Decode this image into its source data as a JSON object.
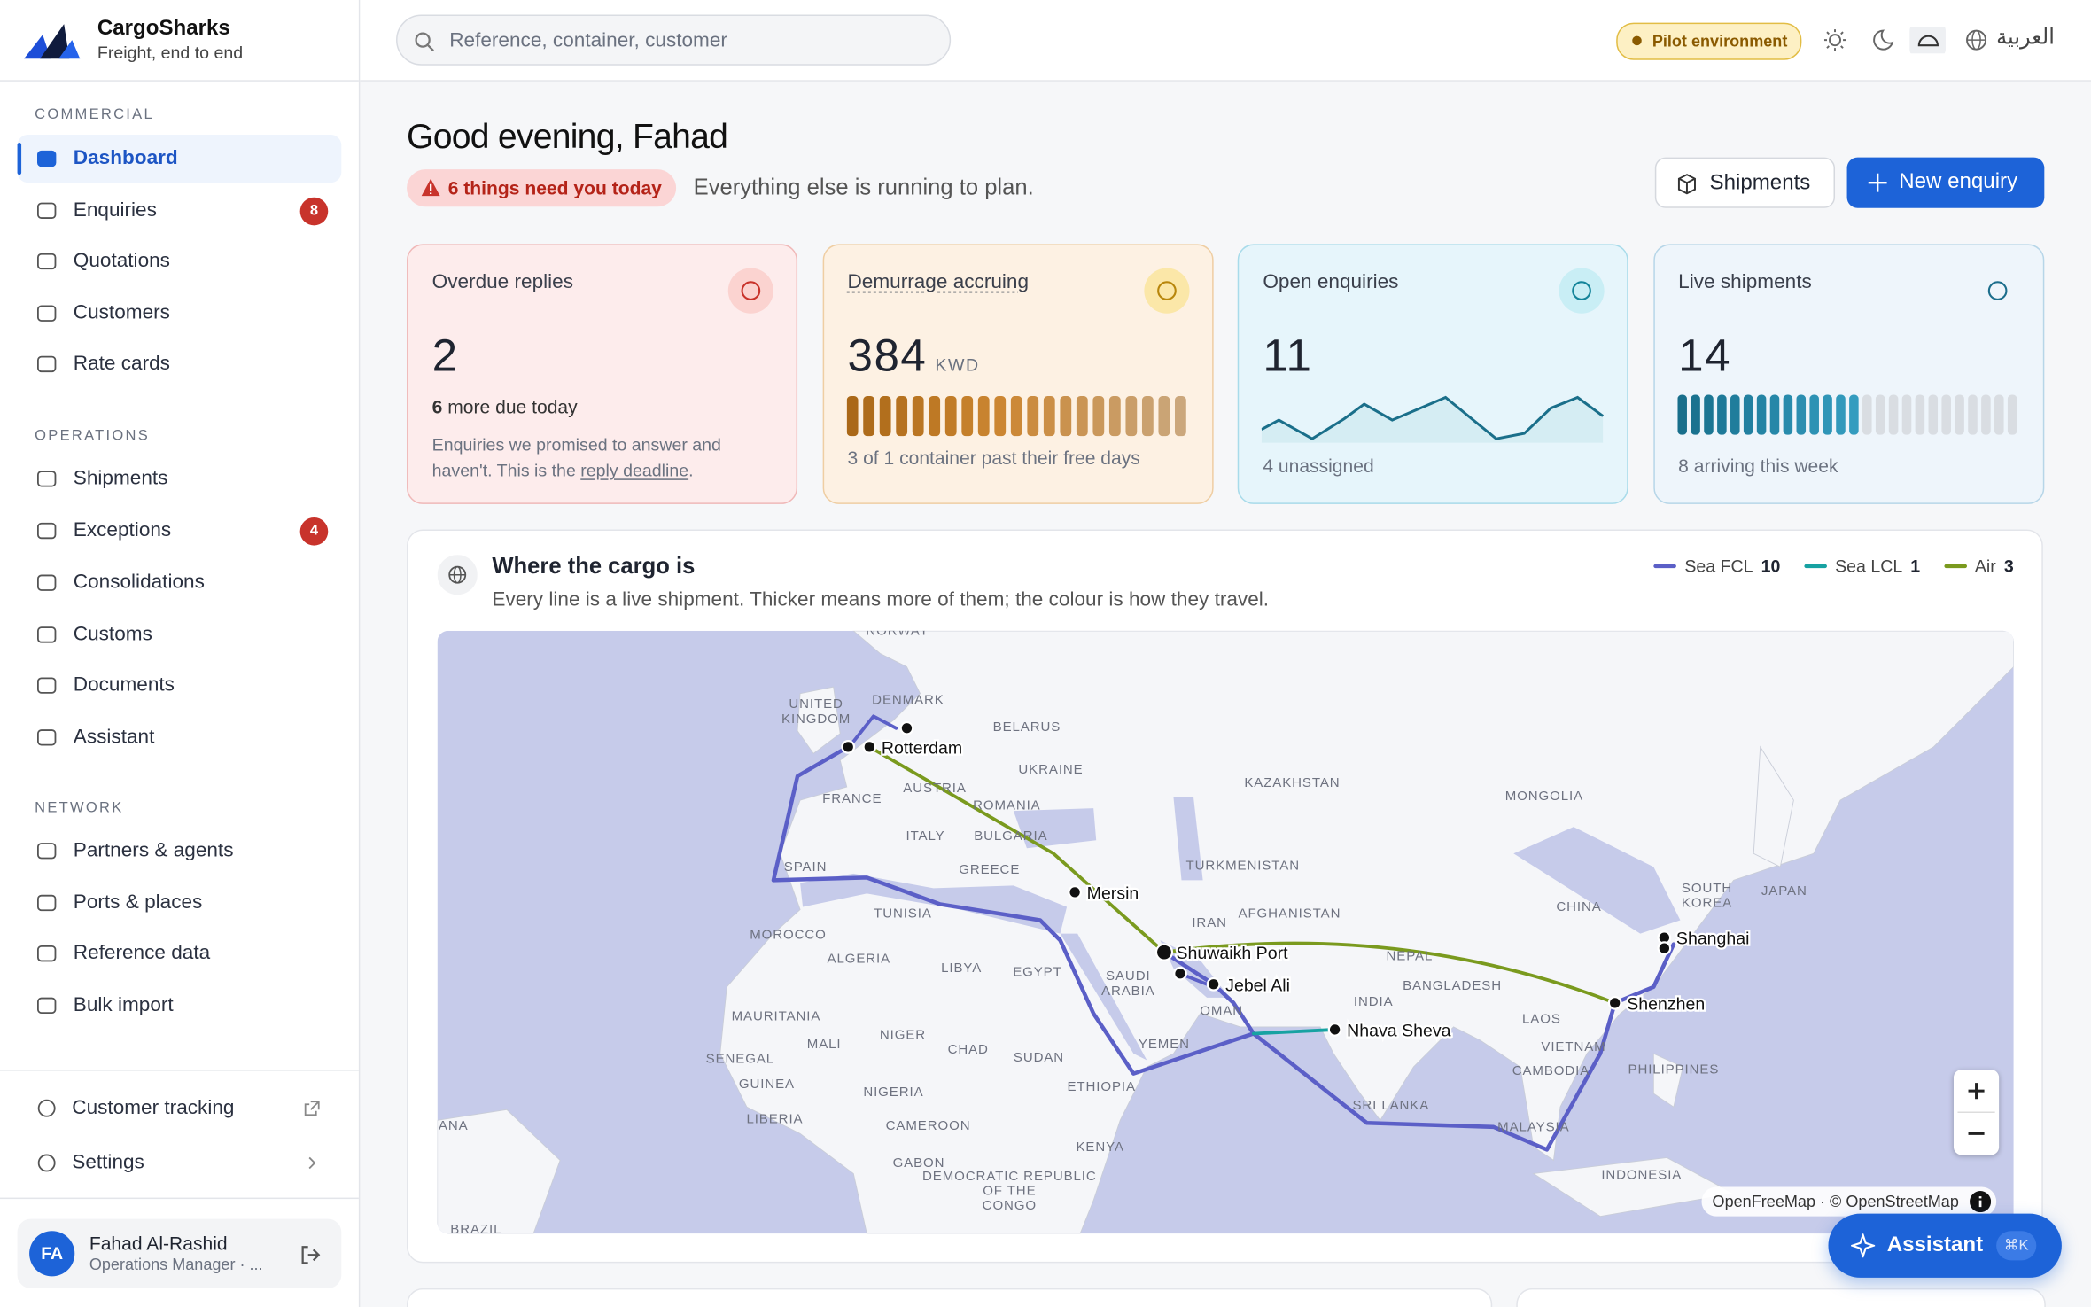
{
  "brand": {
    "name": "CargoSharks",
    "tagline": "Freight, end to end"
  },
  "search": {
    "placeholder": "Reference, container, customer"
  },
  "topbar": {
    "environment": "Pilot environment",
    "language": "العربية"
  },
  "nav": [
    {
      "title": "COMMERCIAL",
      "items": [
        {
          "label": "Dashboard"
        },
        {
          "label": "Enquiries",
          "badge": 8
        },
        {
          "label": "Quotations"
        },
        {
          "label": "Customers"
        },
        {
          "label": "Rate cards"
        }
      ]
    },
    {
      "title": "OPERATIONS",
      "items": [
        {
          "label": "Shipments"
        },
        {
          "label": "Exceptions",
          "badge": 4
        },
        {
          "label": "Consolidations"
        },
        {
          "label": "Customs"
        },
        {
          "label": "Documents"
        },
        {
          "label": "Assistant"
        }
      ]
    },
    {
      "title": "NETWORK",
      "items": [
        {
          "label": "Partners & agents"
        },
        {
          "label": "Ports & places"
        },
        {
          "label": "Reference data"
        },
        {
          "label": "Bulk import"
        }
      ]
    }
  ],
  "nav_footer": [
    {
      "label": "Customer tracking"
    },
    {
      "label": "Settings"
    }
  ],
  "user": {
    "initials": "FA",
    "name": "Fahad Al-Rashid",
    "role": "Operations Manager · ..."
  },
  "greeting": {
    "title": "Good evening, Fahad",
    "alert": "6 things need you today",
    "subline": "Everything else is running to plan."
  },
  "actions": [
    {
      "label": "Shipments"
    },
    {
      "label": "New enquiry"
    }
  ],
  "cards": [
    {
      "title": "Overdue replies",
      "value": 2,
      "note_strong": 6,
      "note": " more due today",
      "desc": "Enquiries we promised to answer and haven't. This is the ",
      "link": "reply deadline",
      "desc_end": "."
    },
    {
      "title": "Demurrage accruing",
      "value": 384,
      "unit": "KWD",
      "note": "3 of 1 container past their free days"
    },
    {
      "title": "Open enquiries",
      "value": 11,
      "note": "4 unassigned"
    },
    {
      "title": "Live shipments",
      "value": 14,
      "note": "8 arriving this week"
    }
  ],
  "map": {
    "title": "Where the cargo is",
    "subtitle": "Every line is a live shipment. Thicker means more of them; the colour is how they travel.",
    "legend": [
      {
        "name": "Sea FCL",
        "count": 10,
        "color": "#5b5fc7"
      },
      {
        "name": "Sea LCL",
        "count": 1,
        "color": "#17a2a2"
      },
      {
        "name": "Air",
        "count": 3,
        "color": "#7a9a1e"
      }
    ],
    "ports": [
      "Rotterdam",
      "Mersin",
      "Shuwaikh Port",
      "Jebel Ali",
      "Nhava Sheva",
      "Shenzhen",
      "Shanghai"
    ],
    "countries": [
      "NORWAY",
      "UNITED KINGDOM",
      "DENMARK",
      "BELARUS",
      "UKRAINE",
      "FRANCE",
      "AUSTRIA",
      "ROMANIA",
      "ITALY",
      "BULGARIA",
      "GREECE",
      "SPAIN",
      "TUNISIA",
      "MOROCCO",
      "ALGERIA",
      "LIBYA",
      "EGYPT",
      "TURKMENISTAN",
      "KAZAKHSTAN",
      "MONGOLIA",
      "IRAN",
      "AFGHANISTAN",
      "CHINA",
      "SOUTH KOREA",
      "JAPAN",
      "NEPAL",
      "BANGLADESH",
      "INDIA",
      "SAUDI ARABIA",
      "OMAN",
      "YEMEN",
      "MAURITANIA",
      "MALI",
      "NIGER",
      "CHAD",
      "SUDAN",
      "SENEGAL",
      "GUINEA",
      "NIGERIA",
      "ETHIOPIA",
      "LIBERIA",
      "CAMEROON",
      "KENYA",
      "GABON",
      "DEMOCRATIC REPUBLIC OF THE CONGO",
      "LAOS",
      "VIETNAM",
      "CAMBODIA",
      "PHILIPPINES",
      "SRI LANKA",
      "MALAYSIA",
      "INDONESIA",
      "ANA",
      "BRAZIL"
    ],
    "attribution": "OpenFreeMap · © OpenStreetMap"
  },
  "assistant": {
    "label": "Assistant",
    "shortcut": "⌘K"
  }
}
